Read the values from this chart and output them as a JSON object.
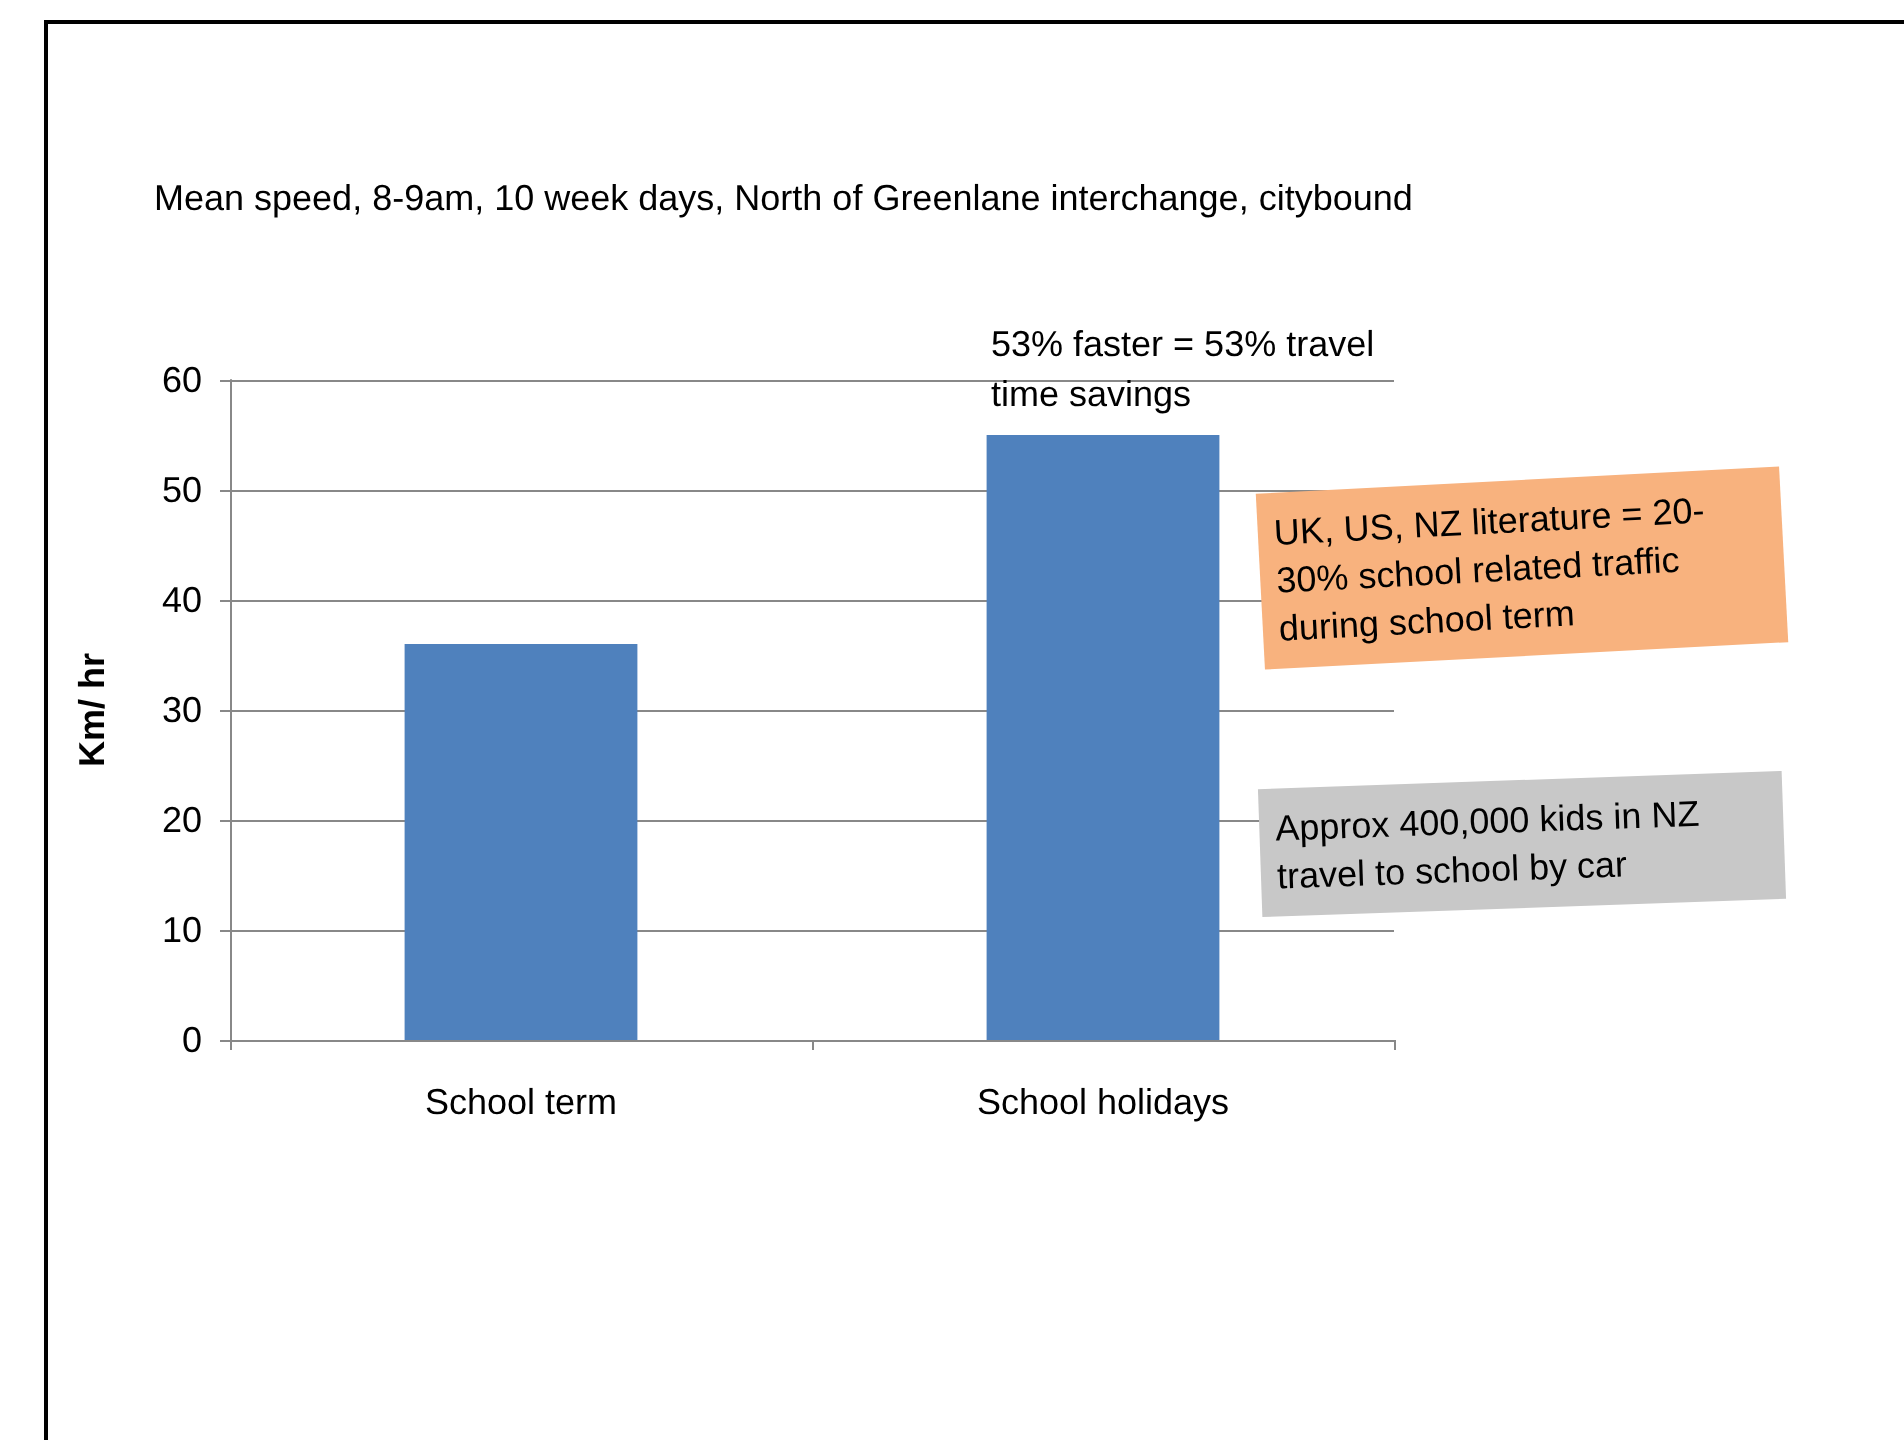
{
  "chart_data": {
    "type": "bar",
    "title": "Mean speed, 8-9am, 10 week days, North of Greenlane interchange, citybound",
    "ylabel": "Km/ hr",
    "categories": [
      "School term",
      "School holidays"
    ],
    "values": [
      36,
      55
    ],
    "color": "#4f81bd",
    "ylim": [
      0,
      60
    ],
    "yticks": [
      0,
      10,
      20,
      30,
      40,
      50,
      60
    ],
    "grid": "y",
    "annotations": [
      {
        "text": "53% faster = 53% travel time savings",
        "x": "School holidays",
        "y": 55
      },
      "UK, US, NZ literature = 20-30% school related traffic during school term",
      "Approx 400,000 kids in NZ travel to school by car"
    ]
  }
}
